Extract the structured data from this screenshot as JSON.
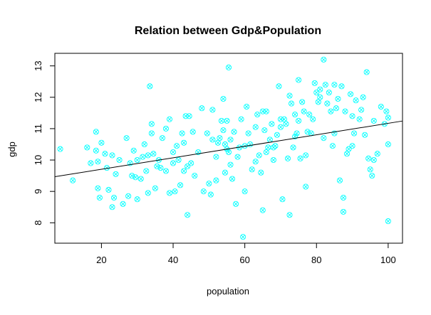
{
  "chart_data": {
    "type": "scatter",
    "title": "Relation between Gdp&Population",
    "xlabel": "population",
    "ylabel": "gdp",
    "xlim": [
      7,
      104
    ],
    "ylim": [
      7.35,
      13.4
    ],
    "xticks": [
      "20",
      "40",
      "60",
      "80",
      "100"
    ],
    "yticks": [
      "8",
      "9",
      "10",
      "11",
      "12",
      "13"
    ],
    "grid": false,
    "legend": "none",
    "point_style": "x-in-circle",
    "point_color": "#00ffff",
    "trend_line": {
      "color": "#000000",
      "intercept": 9.34,
      "slope": 0.0183
    },
    "points": [
      [
        8.5,
        10.35
      ],
      [
        12,
        9.35
      ],
      [
        16,
        10.4
      ],
      [
        17,
        9.9
      ],
      [
        18.5,
        10.9
      ],
      [
        18.5,
        10.3
      ],
      [
        19,
        9.95
      ],
      [
        19,
        9.1
      ],
      [
        19.5,
        8.8
      ],
      [
        20,
        10.55
      ],
      [
        21,
        10.2
      ],
      [
        21.5,
        9.75
      ],
      [
        22,
        9.05
      ],
      [
        23,
        8.5
      ],
      [
        23,
        10.15
      ],
      [
        23.5,
        8.8
      ],
      [
        24,
        9.55
      ],
      [
        25,
        10.0
      ],
      [
        26,
        8.6
      ],
      [
        27,
        10.7
      ],
      [
        27.5,
        8.85
      ],
      [
        28,
        9.9
      ],
      [
        28.5,
        9.5
      ],
      [
        29,
        10.3
      ],
      [
        29.5,
        9.45
      ],
      [
        30,
        10.0
      ],
      [
        30,
        8.75
      ],
      [
        31,
        9.4
      ],
      [
        31.5,
        10.1
      ],
      [
        32,
        10.5
      ],
      [
        32.5,
        9.65
      ],
      [
        33,
        10.15
      ],
      [
        33,
        8.95
      ],
      [
        33.5,
        12.35
      ],
      [
        34,
        10.85
      ],
      [
        34,
        11.15
      ],
      [
        34.5,
        10.2
      ],
      [
        35,
        9.1
      ],
      [
        35.5,
        9.8
      ],
      [
        36,
        10.0
      ],
      [
        36.5,
        9.75
      ],
      [
        37,
        10.7
      ],
      [
        38,
        11.0
      ],
      [
        38,
        9.65
      ],
      [
        39,
        8.95
      ],
      [
        39,
        11.3
      ],
      [
        40,
        10.25
      ],
      [
        40,
        9.9
      ],
      [
        40.5,
        9.0
      ],
      [
        41,
        10.45
      ],
      [
        41.5,
        10.0
      ],
      [
        42,
        9.2
      ],
      [
        42.5,
        10.85
      ],
      [
        43,
        10.55
      ],
      [
        43,
        9.65
      ],
      [
        43.5,
        11.4
      ],
      [
        44,
        9.8
      ],
      [
        44,
        8.25
      ],
      [
        44.5,
        11.4
      ],
      [
        45,
        9.9
      ],
      [
        45.5,
        10.9
      ],
      [
        46,
        9.5
      ],
      [
        47,
        10.25
      ],
      [
        48,
        11.65
      ],
      [
        48.5,
        9.0
      ],
      [
        49.5,
        10.85
      ],
      [
        50,
        9.25
      ],
      [
        50.5,
        8.9
      ],
      [
        51,
        10.65
      ],
      [
        51,
        11.6
      ],
      [
        52,
        10.1
      ],
      [
        52,
        9.35
      ],
      [
        52.5,
        10.55
      ],
      [
        53,
        10.7
      ],
      [
        53.5,
        11.25
      ],
      [
        54,
        10.95
      ],
      [
        54,
        11.95
      ],
      [
        54.5,
        9.6
      ],
      [
        54.5,
        10.5
      ],
      [
        55,
        10.35
      ],
      [
        55,
        11.25
      ],
      [
        55.5,
        12.95
      ],
      [
        55.5,
        10.25
      ],
      [
        56,
        9.85
      ],
      [
        56,
        10.65
      ],
      [
        56.5,
        9.4
      ],
      [
        57,
        10.9
      ],
      [
        57.5,
        8.6
      ],
      [
        58,
        10.1
      ],
      [
        58.5,
        10.4
      ],
      [
        59,
        11.3
      ],
      [
        59.5,
        7.55
      ],
      [
        60,
        9.0
      ],
      [
        60,
        10.45
      ],
      [
        60.5,
        11.7
      ],
      [
        61,
        10.85
      ],
      [
        61.5,
        10.5
      ],
      [
        62,
        9.7
      ],
      [
        63,
        9.95
      ],
      [
        63,
        11.05
      ],
      [
        63.5,
        11.45
      ],
      [
        64,
        10.15
      ],
      [
        64.5,
        9.6
      ],
      [
        65,
        11.55
      ],
      [
        65,
        8.4
      ],
      [
        65.5,
        10.95
      ],
      [
        66,
        11.55
      ],
      [
        66,
        10.25
      ],
      [
        66.5,
        10.4
      ],
      [
        67,
        10.65
      ],
      [
        67.5,
        11.15
      ],
      [
        68,
        10.0
      ],
      [
        68,
        10.4
      ],
      [
        68.5,
        10.45
      ],
      [
        69,
        10.8
      ],
      [
        69.5,
        12.35
      ],
      [
        70,
        11.3
      ],
      [
        70,
        11.05
      ],
      [
        70.5,
        8.75
      ],
      [
        71,
        11.3
      ],
      [
        71.5,
        11.15
      ],
      [
        72,
        10.05
      ],
      [
        72.5,
        12.05
      ],
      [
        72.5,
        8.25
      ],
      [
        73,
        11.8
      ],
      [
        73.5,
        10.4
      ],
      [
        74,
        11.45
      ],
      [
        74,
        10.75
      ],
      [
        74.5,
        10.85
      ],
      [
        75,
        12.55
      ],
      [
        75,
        11.25
      ],
      [
        75.5,
        10.05
      ],
      [
        76,
        11.85
      ],
      [
        76.5,
        11.55
      ],
      [
        77,
        10.15
      ],
      [
        77,
        9.15
      ],
      [
        77.5,
        10.9
      ],
      [
        78,
        11.45
      ],
      [
        78.5,
        10.85
      ],
      [
        79,
        11.3
      ],
      [
        79.5,
        12.45
      ],
      [
        80,
        12.15
      ],
      [
        80.5,
        11.85
      ],
      [
        81,
        12.25
      ],
      [
        81,
        12.0
      ],
      [
        82,
        13.2
      ],
      [
        82,
        10.7
      ],
      [
        82.5,
        12.4
      ],
      [
        83,
        11.8
      ],
      [
        83.5,
        12.15
      ],
      [
        84,
        11.55
      ],
      [
        84.5,
        10.45
      ],
      [
        85,
        10.85
      ],
      [
        85,
        12.4
      ],
      [
        85.5,
        11.65
      ],
      [
        86,
        11.95
      ],
      [
        86.5,
        9.35
      ],
      [
        87,
        12.35
      ],
      [
        87.5,
        8.35
      ],
      [
        87.5,
        8.8
      ],
      [
        88,
        11.55
      ],
      [
        88.5,
        10.2
      ],
      [
        89,
        10.35
      ],
      [
        89.5,
        12.1
      ],
      [
        90,
        10.45
      ],
      [
        90,
        11.4
      ],
      [
        90.5,
        10.85
      ],
      [
        91,
        11.9
      ],
      [
        92,
        11.3
      ],
      [
        92.5,
        11.6
      ],
      [
        93,
        12.0
      ],
      [
        93.5,
        10.8
      ],
      [
        94,
        12.8
      ],
      [
        94.5,
        10.05
      ],
      [
        95,
        9.7
      ],
      [
        95.5,
        9.5
      ],
      [
        96,
        10.0
      ],
      [
        96,
        11.25
      ],
      [
        97,
        10.2
      ],
      [
        98,
        11.7
      ],
      [
        99,
        11.15
      ],
      [
        99.5,
        11.55
      ],
      [
        100,
        10.5
      ],
      [
        100,
        11.35
      ],
      [
        100,
        8.05
      ]
    ]
  }
}
